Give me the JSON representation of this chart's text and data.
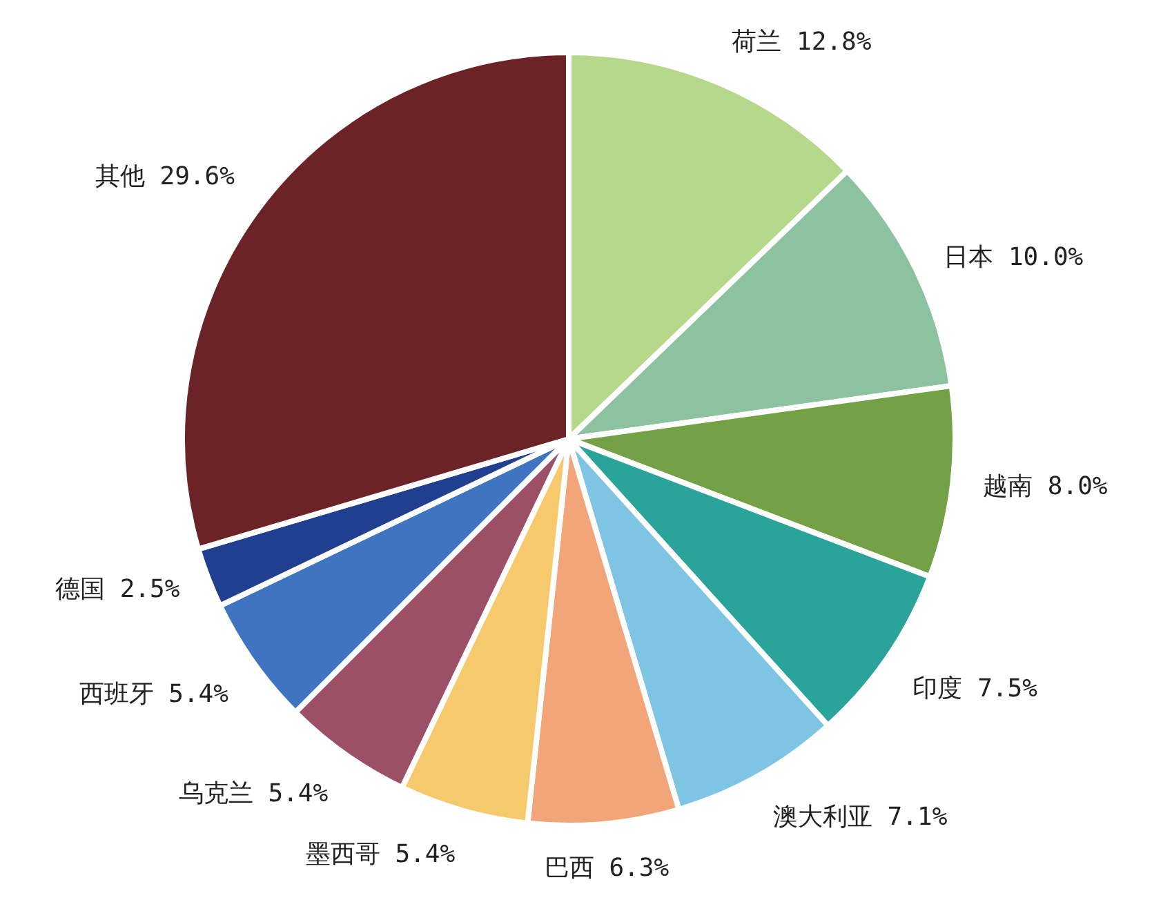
{
  "chart_data": {
    "type": "pie",
    "categories": [
      "荷兰",
      "日本",
      "越南",
      "印度",
      "澳大利亚",
      "巴西",
      "墨西哥",
      "乌克兰",
      "西班牙",
      "德国",
      "其他"
    ],
    "values": [
      12.8,
      10.0,
      8.0,
      7.5,
      7.1,
      6.3,
      5.4,
      5.4,
      5.4,
      2.5,
      29.6
    ],
    "value_labels": [
      "12.8%",
      "10.0%",
      "8.0%",
      "7.5%",
      "7.1%",
      "6.3%",
      "5.4%",
      "5.4%",
      "5.4%",
      "2.5%",
      "29.6%"
    ],
    "colors": [
      "#b5d88a",
      "#8cc2a0",
      "#74a046",
      "#2aa39a",
      "#7ec5e4",
      "#f2a578",
      "#f7c96d",
      "#9b5068",
      "#3f75c0",
      "#20408f",
      "#6b2327"
    ]
  }
}
